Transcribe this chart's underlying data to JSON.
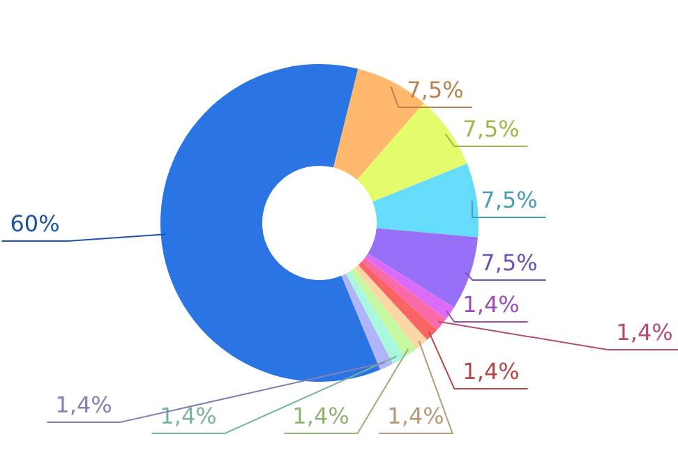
{
  "chart_data": {
    "type": "donut",
    "categories": [
      null,
      null,
      null,
      null,
      null,
      null,
      null,
      null,
      null,
      null,
      null,
      null
    ],
    "values": [
      7.5,
      7.5,
      7.5,
      7.5,
      1.4,
      1.4,
      1.4,
      1.4,
      1.4,
      1.4,
      1.4,
      60
    ],
    "colors": [
      "#ffb86c",
      "#e4fb6c",
      "#66dcfb",
      "#9870f8",
      "#dc6cf8",
      "#fa6aa8",
      "#fa6464",
      "#fdd6a6",
      "#c6f8a0",
      "#a8f8e0",
      "#b0b4f8",
      "#2a74e4"
    ],
    "value_labels": [
      "7,5%",
      "7,5%",
      "7,5%",
      "7,5%",
      "1,4%",
      "1,4%",
      "1,4%",
      "1,4%",
      "1,4%",
      "1,4%",
      "1,4%",
      "60%"
    ],
    "legend": false
  }
}
